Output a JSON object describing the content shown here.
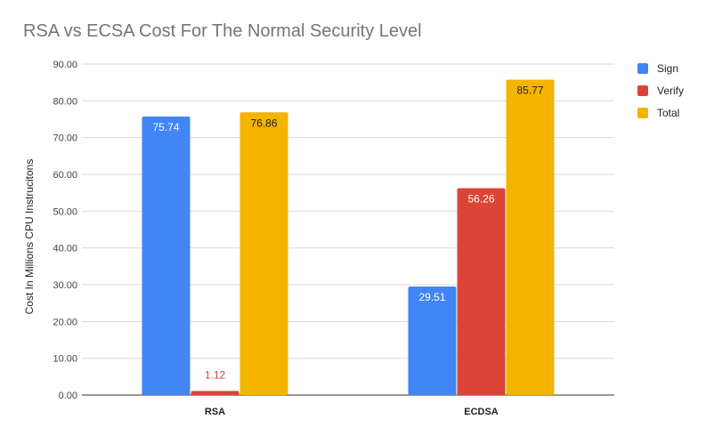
{
  "chart_data": {
    "type": "bar",
    "title": "RSA vs ECSA Cost For The Normal Security Level",
    "xlabel": "",
    "ylabel": "Cost In Millions CPU Instrucitons",
    "categories": [
      "RSA",
      "ECDSA"
    ],
    "series": [
      {
        "name": "Sign",
        "color": "#4285f4",
        "values": [
          75.74,
          29.51
        ],
        "labels": [
          "75.74",
          "29.51"
        ],
        "label_color": "#ffffff"
      },
      {
        "name": "Verify",
        "color": "#db4437",
        "values": [
          1.12,
          56.26
        ],
        "labels": [
          "1.12",
          "56.26"
        ],
        "label_color": "#ffffff"
      },
      {
        "name": "Total",
        "color": "#f4b400",
        "values": [
          76.86,
          85.77
        ],
        "labels": [
          "76.86",
          "85.77"
        ],
        "label_color": "#222222"
      }
    ],
    "ylim": [
      0,
      90
    ],
    "yticks": [
      0,
      10,
      20,
      30,
      40,
      50,
      60,
      70,
      80,
      90
    ],
    "ytick_labels": [
      "0.00",
      "10.00",
      "20.00",
      "30.00",
      "40.00",
      "50.00",
      "60.00",
      "70.00",
      "80.00",
      "90.00"
    ],
    "grid": true,
    "legend_position": "right"
  }
}
